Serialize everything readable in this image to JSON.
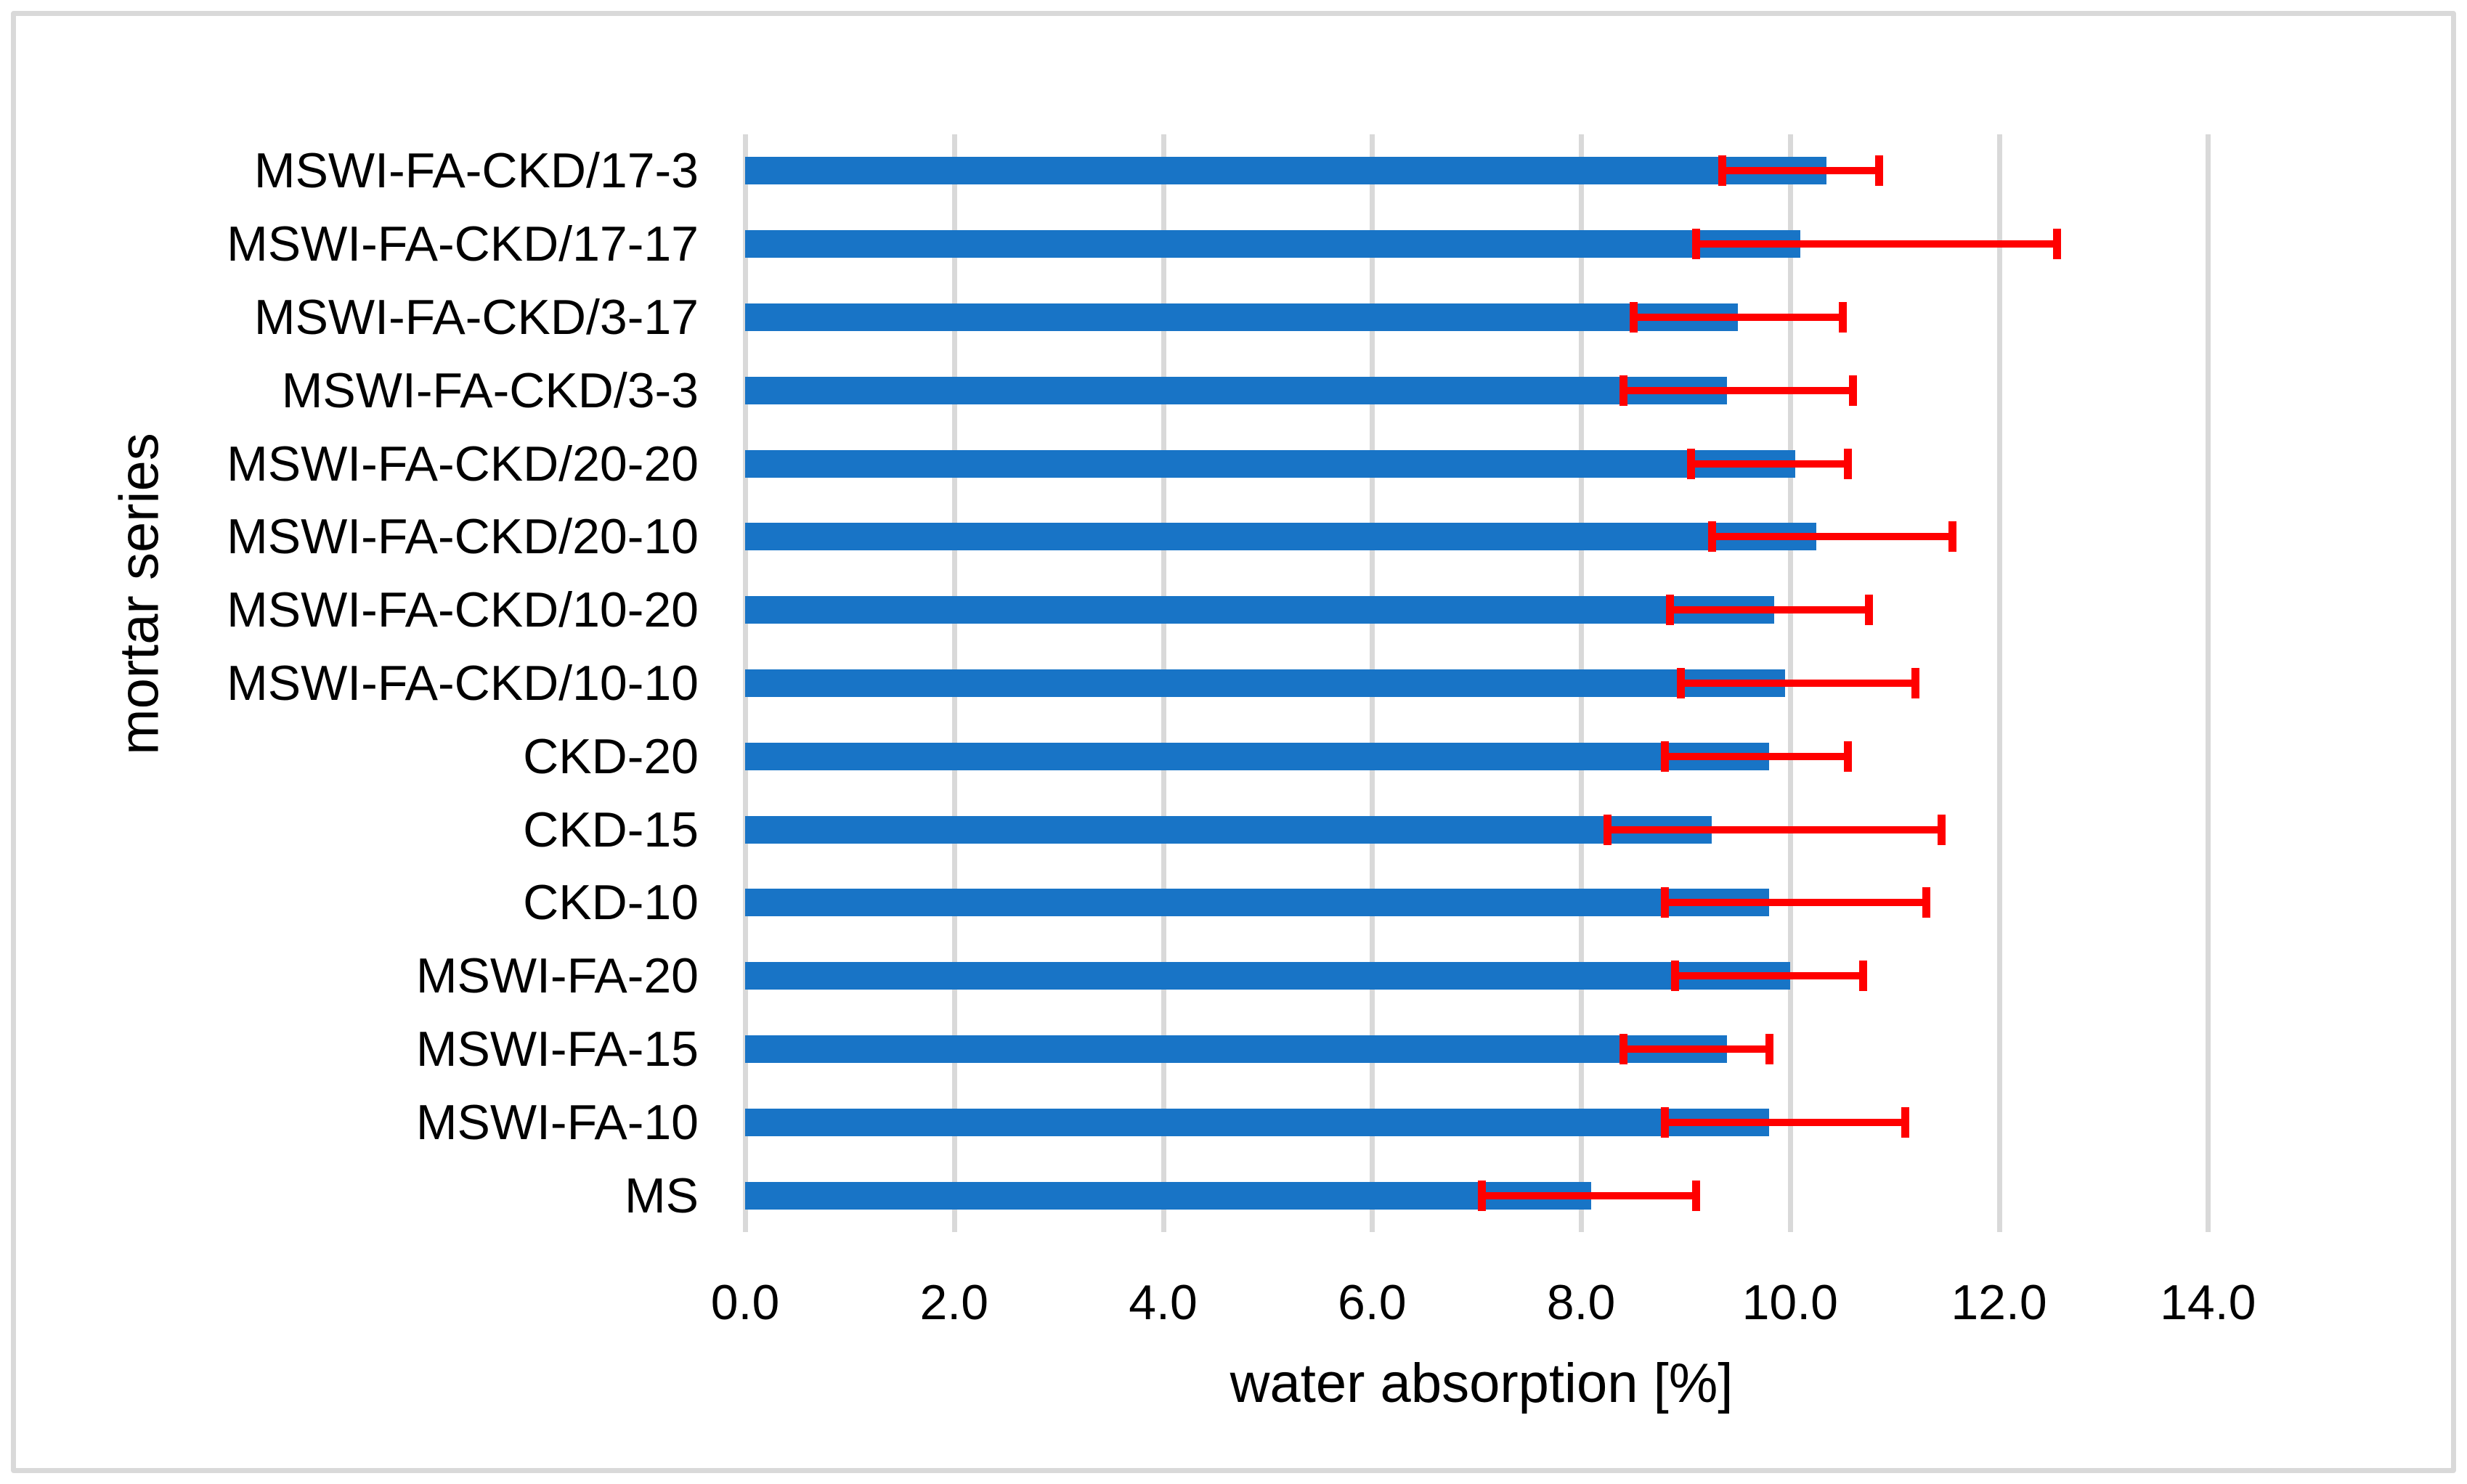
{
  "chart_data": {
    "type": "bar",
    "orientation": "horizontal",
    "xlabel": "water absorption [%]",
    "ylabel": "mortar series",
    "xlim": [
      0,
      16
    ],
    "grid": true,
    "gridline_step": 2.0,
    "xtick_labels": [
      "0.0",
      "2.0",
      "4.0",
      "6.0",
      "8.0",
      "10.0",
      "12.0",
      "14.0"
    ],
    "xtick_values": [
      0,
      2,
      4,
      6,
      8,
      10,
      12,
      14
    ],
    "categories": [
      "MSWI-FA-CKD/17-3",
      "MSWI-FA-CKD/17-17",
      "MSWI-FA-CKD/3-17",
      "MSWI-FA-CKD/3-3",
      "MSWI-FA-CKD/20-20",
      "MSWI-FA-CKD/20-10",
      "MSWI-FA-CKD/10-20",
      "MSWI-FA-CKD/10-10",
      "CKD-20",
      "CKD-15",
      "CKD-10",
      "MSWI-FA-20",
      "MSWI-FA-15",
      "MSWI-FA-10",
      "MS"
    ],
    "values": [
      10.35,
      10.1,
      9.5,
      9.4,
      10.05,
      10.25,
      9.85,
      9.95,
      9.8,
      9.25,
      9.8,
      10.0,
      9.4,
      9.8,
      8.1
    ],
    "error_whisker_min": [
      9.35,
      9.1,
      8.5,
      8.4,
      9.05,
      9.25,
      8.85,
      8.95,
      8.8,
      8.25,
      8.8,
      8.9,
      8.4,
      8.8,
      7.05
    ],
    "error_whisker_max": [
      10.85,
      12.55,
      10.5,
      10.6,
      10.55,
      11.55,
      10.75,
      11.2,
      10.55,
      11.45,
      11.3,
      10.7,
      9.8,
      11.1,
      9.1
    ],
    "bar_color": "#1874C6",
    "error_color": "#FF0000",
    "gridline_color": "#D9D9D9",
    "frame_color": "#D9D9D9",
    "text_color": "#000000"
  }
}
